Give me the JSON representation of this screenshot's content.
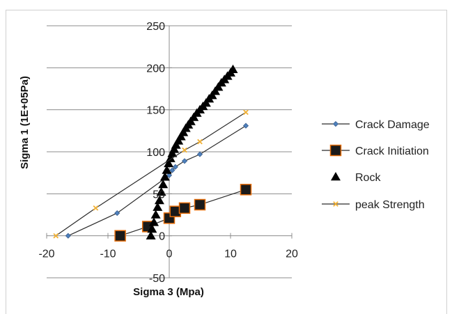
{
  "chart_data": {
    "type": "scatter",
    "title": "",
    "xlabel": "Sigma 3 (Mpa)",
    "ylabel": "Sigma 1 (1E+05Pa)",
    "xlim": [
      -20,
      20
    ],
    "ylim": [
      -50,
      250
    ],
    "xticks": [
      -20,
      -10,
      0,
      10,
      20
    ],
    "yticks": [
      -50,
      0,
      50,
      100,
      150,
      200,
      250
    ],
    "grid": true,
    "legend_position": "right",
    "series": [
      {
        "name": "Crack Damage",
        "style": "line-markers",
        "marker": "diamond",
        "color": "#4f81bd",
        "line_color": "#2b2b2b",
        "x": [
          -16.5,
          -8.5,
          0,
          0.5,
          1,
          2.5,
          5,
          12.5
        ],
        "y": [
          0,
          27,
          72,
          78,
          82,
          89,
          97,
          131
        ]
      },
      {
        "name": "Crack Initiation",
        "style": "line-markers",
        "marker": "square",
        "color": "#1a1a1a",
        "edge_color": "#e46c0a",
        "line_color": "#2b2b2b",
        "x": [
          -8,
          -3.5,
          0,
          1,
          2.5,
          5,
          12.5
        ],
        "y": [
          0,
          11,
          21,
          29,
          33,
          37,
          55
        ]
      },
      {
        "name": "Rock",
        "style": "markers",
        "marker": "triangle",
        "color": "#000000",
        "x": [
          -3,
          -2.8,
          -2.5,
          -2.2,
          -1.9,
          -1.6,
          -1.3,
          -1,
          -0.7,
          -0.4,
          -0.1,
          0.2,
          0.5,
          0.8,
          1.1,
          1.5,
          1.9,
          2.3,
          2.7,
          3.1,
          3.5,
          4,
          4.5,
          5,
          5.5,
          6,
          6.5,
          7,
          7.5,
          8,
          8.5,
          9,
          9.5,
          10,
          10.4
        ],
        "y": [
          0,
          8,
          16,
          25,
          34,
          42,
          52,
          61,
          70,
          78,
          86,
          92,
          98,
          103,
          108,
          113,
          118,
          123,
          128,
          132,
          136,
          141,
          146,
          150,
          154,
          158,
          163,
          167,
          172,
          177,
          182,
          186,
          190,
          194,
          198
        ]
      },
      {
        "name": "peak Strength",
        "style": "line-markers",
        "marker": "x",
        "color": "#f2b134",
        "line_color": "#2b2b2b",
        "x": [
          -18.5,
          -12,
          2.5,
          5,
          12.5
        ],
        "y": [
          0,
          33,
          102,
          112,
          147
        ]
      }
    ]
  }
}
